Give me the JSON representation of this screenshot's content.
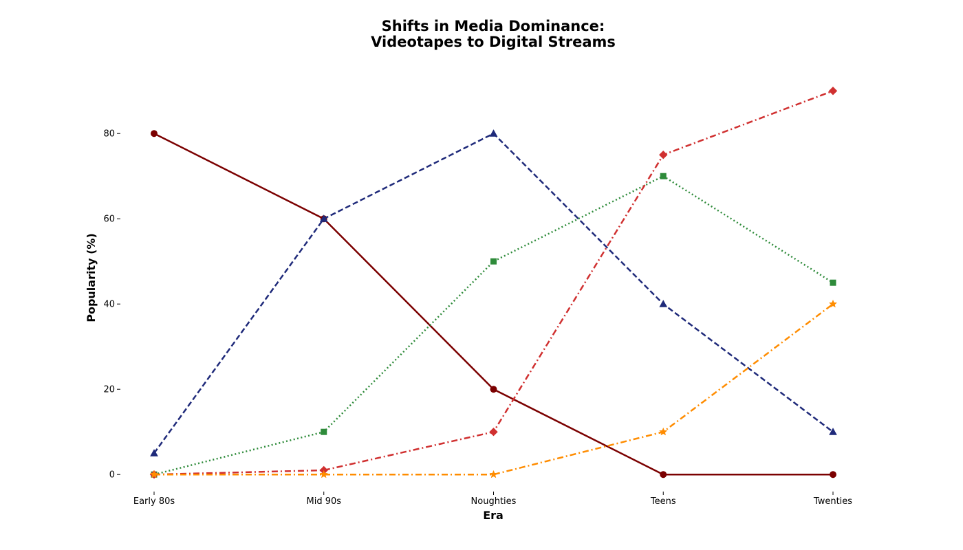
{
  "chart_data": {
    "type": "line",
    "title": [
      "Shifts in Media Dominance:",
      "Videotapes to Digital Streams"
    ],
    "xlabel": "Era",
    "ylabel": "Popularity (%)",
    "categories": [
      "Early 80s",
      "Mid 90s",
      "Noughties",
      "Teens",
      "Twenties"
    ],
    "yticks": [
      0,
      20,
      40,
      60,
      80
    ],
    "ylim": [
      -4,
      96
    ],
    "grid": false,
    "series": [
      {
        "values": [
          80,
          60,
          20,
          0,
          0
        ],
        "color": "#7b0000",
        "dash": "solid",
        "marker": "circle"
      },
      {
        "values": [
          5,
          60,
          80,
          40,
          10
        ],
        "color": "#1f2a7a",
        "dash": "dashed",
        "marker": "triangle"
      },
      {
        "values": [
          0,
          10,
          50,
          70,
          45
        ],
        "color": "#2e8b3a",
        "dash": "dotted",
        "marker": "square"
      },
      {
        "values": [
          0,
          1,
          10,
          75,
          90
        ],
        "color": "#d03030",
        "dash": "dashdot",
        "marker": "diamond"
      },
      {
        "values": [
          0,
          0,
          0,
          10,
          40
        ],
        "color": "#ff8c00",
        "dash": "dashdot",
        "marker": "star"
      }
    ]
  }
}
